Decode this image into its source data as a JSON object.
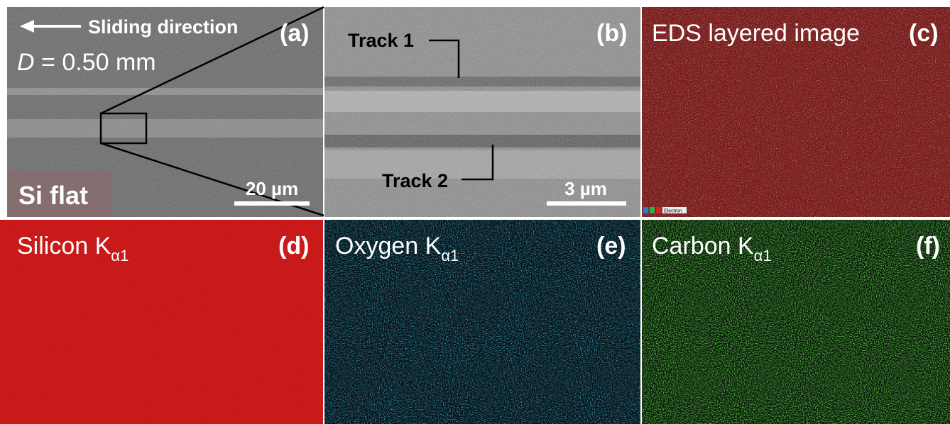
{
  "panel_a": {
    "label": "(a)",
    "arrow_text": "Sliding direction",
    "distance_symbol": "D",
    "distance_value": "= 0.50 mm",
    "scale_bar": "20 µm",
    "sample": "Si flat"
  },
  "panel_b": {
    "label": "(b)",
    "track_1": "Track 1",
    "track_2": "Track 2",
    "scale_bar": "3 µm"
  },
  "panel_c": {
    "label": "(c)",
    "title": "EDS layered image",
    "legend": "Electron"
  },
  "panel_d": {
    "label": "(d)",
    "element": "Silicon K",
    "subscript": "α1"
  },
  "panel_e": {
    "label": "(e)",
    "element": "Oxygen K",
    "subscript": "α1"
  },
  "panel_f": {
    "label": "(f)",
    "element": "Carbon K",
    "subscript": "α1"
  }
}
